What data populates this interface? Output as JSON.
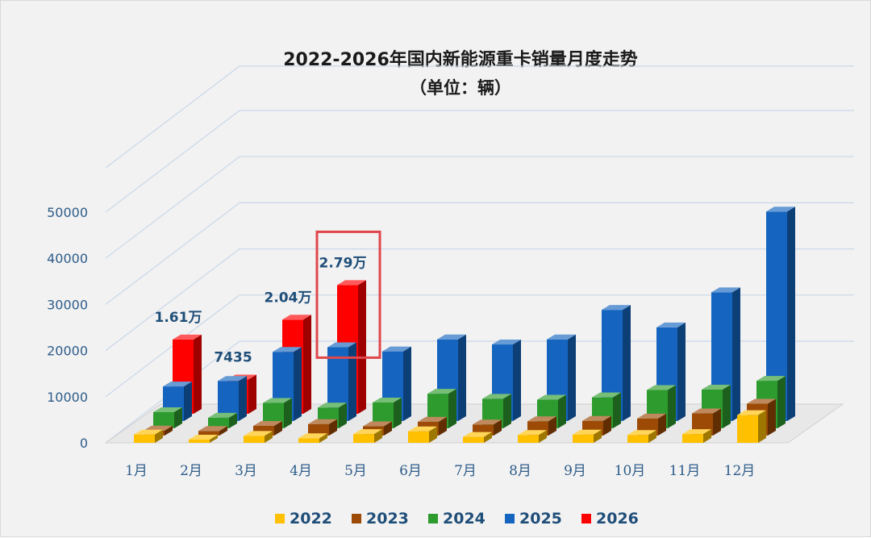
{
  "chart_data": {
    "type": "bar",
    "title": "2022-2026年国内新能源重卡销量月度走势",
    "subtitle": "（单位：辆）",
    "categories": [
      "1月",
      "2月",
      "3月",
      "4月",
      "5月",
      "6月",
      "7月",
      "8月",
      "9月",
      "10月",
      "11月",
      "12月"
    ],
    "yticks": [
      "0",
      "10000",
      "20000",
      "30000",
      "40000",
      "50000"
    ],
    "ylim": [
      0,
      50000
    ],
    "series": [
      {
        "name": "2022",
        "color": "#ffc000",
        "values": [
          1800,
          700,
          1500,
          1000,
          1900,
          2500,
          1300,
          1700,
          1800,
          1700,
          1900,
          6000
        ]
      },
      {
        "name": "2023",
        "color": "#9c4a06",
        "values": [
          1100,
          1000,
          2100,
          2500,
          2000,
          3000,
          2400,
          3100,
          3200,
          3700,
          4800,
          6900
        ]
      },
      {
        "name": "2024",
        "color": "#2e9b2e",
        "values": [
          3500,
          2300,
          5500,
          4500,
          5600,
          7500,
          6400,
          6200,
          6700,
          8300,
          8400,
          10300
        ]
      },
      {
        "name": "2025",
        "color": "#1565c0",
        "values": [
          7500,
          8700,
          15000,
          16000,
          15100,
          17700,
          16600,
          17700,
          24100,
          20300,
          27900,
          45400
        ]
      },
      {
        "name": "2026",
        "color": "#ff0000",
        "values": [
          16100,
          7435,
          20400,
          27900,
          null,
          null,
          null,
          null,
          null,
          null,
          null,
          null
        ]
      }
    ],
    "annotations": [
      {
        "text": "1.61万",
        "category": "1月",
        "series": "2026"
      },
      {
        "text": "7435",
        "category": "2月",
        "series": "2026"
      },
      {
        "text": "2.04万",
        "category": "3月",
        "series": "2026"
      },
      {
        "text": "2.79万",
        "category": "4月",
        "series": "2026"
      }
    ],
    "highlight": {
      "category": "4月",
      "series": "2026",
      "color": "#e0474c"
    },
    "grid": true,
    "legend_position": "bottom",
    "chart_style": "3d-clustered-column"
  }
}
